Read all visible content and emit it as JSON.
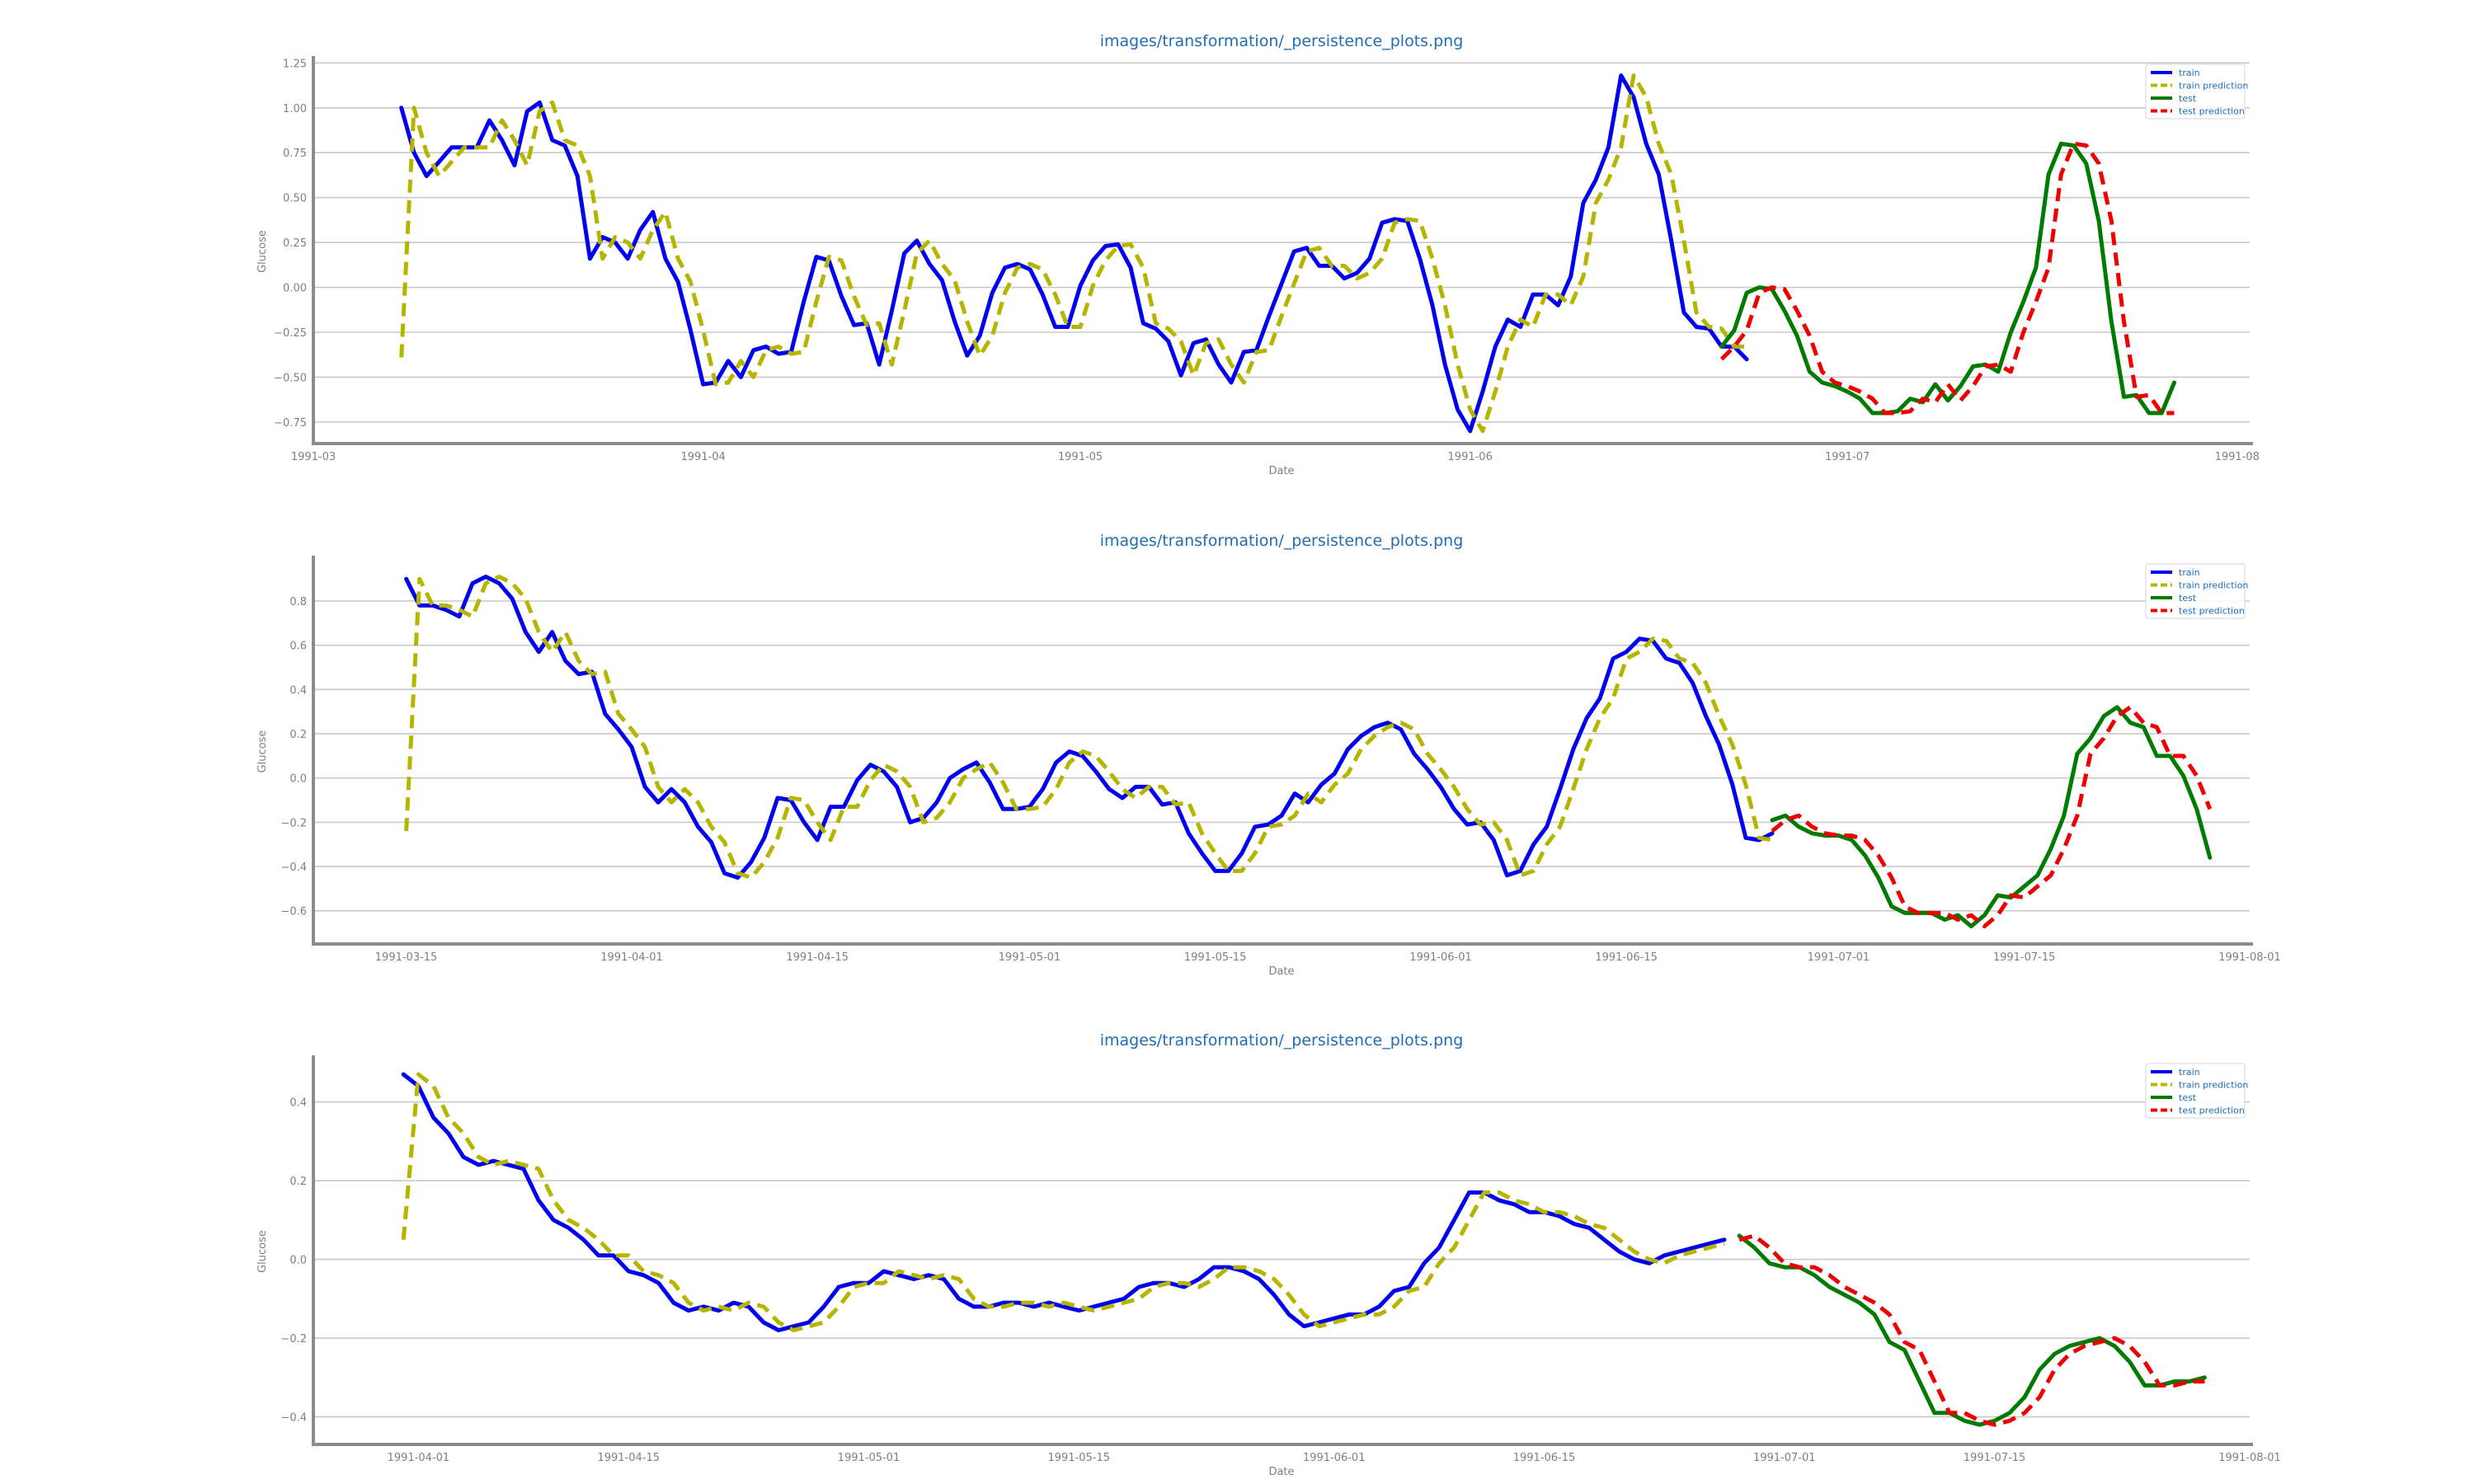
{
  "chart_data": [
    {
      "type": "line",
      "title": "images/transformation/_persistence_plots.png",
      "xlabel": "Date",
      "ylabel": "Glucose",
      "xlim": [
        "1991-03-01",
        "1991-08-02"
      ],
      "ylim": [
        -0.87,
        1.27
      ],
      "grid": true,
      "legend_position": "top-right",
      "x_ticks": [
        "1991-03",
        "1991-04",
        "1991-05",
        "1991-06",
        "1991-07",
        "1991-08"
      ],
      "y_ticks": [
        1.25,
        1.0,
        0.75,
        0.5,
        0.25,
        0.0,
        -0.25,
        -0.5,
        -0.75
      ],
      "y_tick_labels": [
        "1.25",
        "1.00",
        "0.75",
        "0.50",
        "0.25",
        "0.00",
        "−0.25",
        "−0.50",
        "−0.75"
      ],
      "series": [
        {
          "name": "train",
          "color": "#0000ee",
          "dash": "solid",
          "x_start": "1991-03-08",
          "step_days": 1,
          "values": [
            1.0,
            0.75,
            0.62,
            0.7,
            0.78,
            0.78,
            0.78,
            0.93,
            0.82,
            0.68,
            0.98,
            1.03,
            0.82,
            0.79,
            0.62,
            0.16,
            0.28,
            0.25,
            0.16,
            0.32,
            0.42,
            0.16,
            0.03,
            -0.24,
            -0.54,
            -0.53,
            -0.41,
            -0.5,
            -0.35,
            -0.33,
            -0.37,
            -0.36,
            -0.08,
            0.17,
            0.15,
            -0.05,
            -0.21,
            -0.2,
            -0.43,
            -0.13,
            0.19,
            0.26,
            0.13,
            0.04,
            -0.19,
            -0.38,
            -0.27,
            -0.03,
            0.11,
            0.13,
            0.1,
            -0.04,
            -0.22,
            -0.22,
            0.01,
            0.15,
            0.23,
            0.24,
            0.11,
            -0.2,
            -0.23,
            -0.3,
            -0.49,
            -0.31,
            -0.29,
            -0.43,
            -0.53,
            -0.36,
            -0.35,
            -0.16,
            0.02,
            0.2,
            0.22,
            0.12,
            0.12,
            0.05,
            0.08,
            0.16,
            0.36,
            0.38,
            0.37,
            0.16,
            -0.1,
            -0.43,
            -0.68,
            -0.8,
            -0.58,
            -0.33,
            -0.18,
            -0.22,
            -0.04,
            -0.04,
            -0.1,
            0.06,
            0.47,
            0.6,
            0.78,
            1.18,
            1.06,
            0.8,
            0.63,
            0.26,
            -0.14,
            -0.22,
            -0.23,
            -0.33,
            -0.33,
            -0.4
          ]
        },
        {
          "name": "train prediction",
          "color": "#b5b500",
          "dash": "dashed",
          "x_start": "1991-03-08",
          "step_days": 1,
          "values": [
            -0.39,
            1.0,
            0.75,
            0.62,
            0.7,
            0.78,
            0.78,
            0.78,
            0.93,
            0.82,
            0.68,
            0.98,
            1.03,
            0.82,
            0.79,
            0.62,
            0.16,
            0.28,
            0.25,
            0.16,
            0.32,
            0.42,
            0.16,
            0.03,
            -0.24,
            -0.54,
            -0.53,
            -0.41,
            -0.5,
            -0.35,
            -0.33,
            -0.37,
            -0.36,
            -0.08,
            0.17,
            0.15,
            -0.05,
            -0.21,
            -0.2,
            -0.43,
            -0.13,
            0.19,
            0.26,
            0.13,
            0.04,
            -0.19,
            -0.38,
            -0.27,
            -0.03,
            0.11,
            0.13,
            0.1,
            -0.04,
            -0.22,
            -0.22,
            0.01,
            0.15,
            0.23,
            0.24,
            0.11,
            -0.2,
            -0.23,
            -0.3,
            -0.49,
            -0.31,
            -0.29,
            -0.43,
            -0.53,
            -0.36,
            -0.35,
            -0.16,
            0.02,
            0.2,
            0.22,
            0.12,
            0.12,
            0.05,
            0.08,
            0.16,
            0.36,
            0.38,
            0.37,
            0.16,
            -0.1,
            -0.43,
            -0.68,
            -0.8,
            -0.58,
            -0.33,
            -0.18,
            -0.22,
            -0.04,
            -0.04,
            -0.1,
            0.06,
            0.47,
            0.6,
            0.78,
            1.18,
            1.06,
            0.8,
            0.63,
            0.26,
            -0.14,
            -0.22,
            -0.23,
            -0.33,
            -0.33
          ]
        },
        {
          "name": "test",
          "color": "#007a00",
          "dash": "solid",
          "x_start": "1991-06-21",
          "step_days": 1,
          "values": [
            -0.33,
            -0.24,
            -0.03,
            0.0,
            -0.01,
            -0.13,
            -0.27,
            -0.47,
            -0.53,
            -0.55,
            -0.58,
            -0.62,
            -0.7,
            -0.7,
            -0.69,
            -0.62,
            -0.64,
            -0.54,
            -0.63,
            -0.55,
            -0.44,
            -0.43,
            -0.47,
            -0.25,
            -0.08,
            0.11,
            0.63,
            0.8,
            0.79,
            0.69,
            0.37,
            -0.19,
            -0.61,
            -0.6,
            -0.7,
            -0.7,
            -0.53
          ]
        },
        {
          "name": "test prediction",
          "color": "#ee0000",
          "dash": "dashed",
          "x_start": "1991-06-21",
          "step_days": 1,
          "values": [
            -0.4,
            -0.33,
            -0.24,
            -0.03,
            0.0,
            -0.01,
            -0.13,
            -0.27,
            -0.47,
            -0.53,
            -0.55,
            -0.58,
            -0.62,
            -0.7,
            -0.7,
            -0.69,
            -0.62,
            -0.64,
            -0.54,
            -0.63,
            -0.55,
            -0.44,
            -0.43,
            -0.47,
            -0.25,
            -0.08,
            0.11,
            0.63,
            0.8,
            0.79,
            0.69,
            0.37,
            -0.19,
            -0.61,
            -0.6,
            -0.7,
            -0.7
          ]
        }
      ]
    },
    {
      "type": "line",
      "title": "images/transformation/_persistence_plots.png",
      "xlabel": "Date",
      "ylabel": "Glucose",
      "xlim": [
        "1991-03-08",
        "1991-08-01"
      ],
      "ylim": [
        -0.75,
        0.99
      ],
      "grid": true,
      "legend_position": "top-right",
      "x_ticks": [
        "1991-03-15",
        "1991-04-01",
        "1991-04-15",
        "1991-05-01",
        "1991-05-15",
        "1991-06-01",
        "1991-06-15",
        "1991-07-01",
        "1991-07-15",
        "1991-08-01"
      ],
      "y_ticks": [
        0.8,
        0.6,
        0.4,
        0.2,
        0.0,
        -0.2,
        -0.4,
        -0.6
      ],
      "y_tick_labels": [
        "0.8",
        "0.6",
        "0.4",
        "0.2",
        "0.0",
        "−0.2",
        "−0.4",
        "−0.6"
      ],
      "series": [
        {
          "name": "train",
          "color": "#0000ee",
          "dash": "solid",
          "x_start": "1991-03-15",
          "step_days": 1,
          "values": [
            0.9,
            0.78,
            0.78,
            0.76,
            0.73,
            0.88,
            0.91,
            0.88,
            0.81,
            0.66,
            0.57,
            0.66,
            0.53,
            0.47,
            0.48,
            0.29,
            0.22,
            0.14,
            -0.04,
            -0.11,
            -0.05,
            -0.11,
            -0.22,
            -0.29,
            -0.43,
            -0.45,
            -0.38,
            -0.27,
            -0.09,
            -0.1,
            -0.2,
            -0.28,
            -0.13,
            -0.13,
            -0.01,
            0.06,
            0.03,
            -0.04,
            -0.2,
            -0.18,
            -0.11,
            0.0,
            0.04,
            0.07,
            -0.02,
            -0.14,
            -0.14,
            -0.13,
            -0.05,
            0.07,
            0.12,
            0.1,
            0.03,
            -0.05,
            -0.09,
            -0.04,
            -0.04,
            -0.12,
            -0.11,
            -0.25,
            -0.34,
            -0.42,
            -0.42,
            -0.34,
            -0.22,
            -0.21,
            -0.17,
            -0.07,
            -0.11,
            -0.03,
            0.02,
            0.13,
            0.19,
            0.23,
            0.25,
            0.22,
            0.11,
            0.04,
            -0.04,
            -0.14,
            -0.21,
            -0.2,
            -0.28,
            -0.44,
            -0.42,
            -0.3,
            -0.22,
            -0.05,
            0.13,
            0.27,
            0.36,
            0.54,
            0.57,
            0.63,
            0.62,
            0.54,
            0.52,
            0.43,
            0.28,
            0.15,
            -0.03,
            -0.27,
            -0.28,
            -0.25
          ]
        },
        {
          "name": "train prediction",
          "color": "#b5b500",
          "dash": "dashed",
          "x_start": "1991-03-15",
          "step_days": 1,
          "values": [
            -0.24,
            0.9,
            0.78,
            0.78,
            0.76,
            0.73,
            0.88,
            0.91,
            0.88,
            0.81,
            0.66,
            0.57,
            0.66,
            0.53,
            0.47,
            0.48,
            0.29,
            0.22,
            0.14,
            -0.04,
            -0.11,
            -0.05,
            -0.11,
            -0.22,
            -0.29,
            -0.43,
            -0.45,
            -0.38,
            -0.27,
            -0.09,
            -0.1,
            -0.2,
            -0.28,
            -0.13,
            -0.13,
            -0.01,
            0.06,
            0.03,
            -0.04,
            -0.2,
            -0.18,
            -0.11,
            0.0,
            0.04,
            0.07,
            -0.02,
            -0.14,
            -0.14,
            -0.13,
            -0.05,
            0.07,
            0.12,
            0.1,
            0.03,
            -0.05,
            -0.09,
            -0.04,
            -0.04,
            -0.12,
            -0.11,
            -0.25,
            -0.34,
            -0.42,
            -0.42,
            -0.34,
            -0.22,
            -0.21,
            -0.17,
            -0.07,
            -0.11,
            -0.03,
            0.02,
            0.13,
            0.19,
            0.23,
            0.25,
            0.22,
            0.11,
            0.04,
            -0.04,
            -0.14,
            -0.21,
            -0.2,
            -0.28,
            -0.44,
            -0.42,
            -0.3,
            -0.22,
            -0.05,
            0.13,
            0.27,
            0.36,
            0.54,
            0.57,
            0.63,
            0.62,
            0.54,
            0.52,
            0.43,
            0.28,
            0.15,
            -0.03,
            -0.27,
            -0.28
          ]
        },
        {
          "name": "test",
          "color": "#007a00",
          "dash": "solid",
          "x_start": "1991-06-26",
          "step_days": 1,
          "values": [
            -0.19,
            -0.17,
            -0.22,
            -0.25,
            -0.26,
            -0.26,
            -0.28,
            -0.35,
            -0.45,
            -0.58,
            -0.61,
            -0.61,
            -0.61,
            -0.64,
            -0.62,
            -0.67,
            -0.62,
            -0.53,
            -0.54,
            -0.49,
            -0.44,
            -0.32,
            -0.17,
            0.11,
            0.18,
            0.28,
            0.32,
            0.25,
            0.23,
            0.1,
            0.1,
            0.01,
            -0.14,
            -0.36
          ]
        },
        {
          "name": "test prediction",
          "color": "#ee0000",
          "dash": "dashed",
          "x_start": "1991-06-26",
          "step_days": 1,
          "values": [
            -0.24,
            -0.19,
            -0.17,
            -0.22,
            -0.25,
            -0.26,
            -0.26,
            -0.28,
            -0.35,
            -0.45,
            -0.58,
            -0.61,
            -0.61,
            -0.61,
            -0.64,
            -0.62,
            -0.67,
            -0.62,
            -0.53,
            -0.54,
            -0.49,
            -0.44,
            -0.32,
            -0.17,
            0.11,
            0.18,
            0.28,
            0.32,
            0.25,
            0.23,
            0.1,
            0.1,
            0.01,
            -0.14
          ]
        }
      ]
    },
    {
      "type": "line",
      "title": "images/transformation/_persistence_plots.png",
      "xlabel": "Date",
      "ylabel": "Glucose",
      "xlim": [
        "1991-03-25",
        "1991-08-01"
      ],
      "ylim": [
        -0.47,
        0.51
      ],
      "grid": true,
      "legend_position": "top-right",
      "x_ticks": [
        "1991-04-01",
        "1991-04-15",
        "1991-05-01",
        "1991-05-15",
        "1991-06-01",
        "1991-06-15",
        "1991-07-01",
        "1991-07-15",
        "1991-08-01"
      ],
      "y_ticks": [
        0.4,
        0.2,
        0.0,
        -0.2,
        -0.4
      ],
      "y_tick_labels": [
        "0.4",
        "0.2",
        "0.0",
        "−0.2",
        "−0.4"
      ],
      "series": [
        {
          "name": "train",
          "color": "#0000ee",
          "dash": "solid",
          "x_start": "1991-03-31",
          "step_days": 1,
          "values": [
            0.47,
            0.44,
            0.36,
            0.32,
            0.26,
            0.24,
            0.25,
            0.24,
            0.23,
            0.15,
            0.1,
            0.08,
            0.05,
            0.01,
            0.01,
            -0.03,
            -0.04,
            -0.06,
            -0.11,
            -0.13,
            -0.12,
            -0.13,
            -0.11,
            -0.12,
            -0.16,
            -0.18,
            -0.17,
            -0.16,
            -0.12,
            -0.07,
            -0.06,
            -0.06,
            -0.03,
            -0.04,
            -0.05,
            -0.04,
            -0.05,
            -0.1,
            -0.12,
            -0.12,
            -0.11,
            -0.11,
            -0.12,
            -0.11,
            -0.12,
            -0.13,
            -0.12,
            -0.11,
            -0.1,
            -0.07,
            -0.06,
            -0.06,
            -0.07,
            -0.05,
            -0.02,
            -0.02,
            -0.03,
            -0.05,
            -0.09,
            -0.14,
            -0.17,
            -0.16,
            -0.15,
            -0.14,
            -0.14,
            -0.12,
            -0.08,
            -0.07,
            -0.01,
            0.03,
            0.1,
            0.17,
            0.17,
            0.15,
            0.14,
            0.12,
            0.12,
            0.11,
            0.09,
            0.08,
            0.05,
            0.02,
            0.0,
            -0.01,
            0.01,
            0.02,
            0.03,
            0.04,
            0.05
          ]
        },
        {
          "name": "train prediction",
          "color": "#b5b500",
          "dash": "dashed",
          "x_start": "1991-03-31",
          "step_days": 1,
          "values": [
            0.05,
            0.47,
            0.44,
            0.36,
            0.32,
            0.26,
            0.24,
            0.25,
            0.24,
            0.23,
            0.15,
            0.1,
            0.08,
            0.05,
            0.01,
            0.01,
            -0.03,
            -0.04,
            -0.06,
            -0.11,
            -0.13,
            -0.12,
            -0.13,
            -0.11,
            -0.12,
            -0.16,
            -0.18,
            -0.17,
            -0.16,
            -0.12,
            -0.07,
            -0.06,
            -0.06,
            -0.03,
            -0.04,
            -0.05,
            -0.04,
            -0.05,
            -0.1,
            -0.12,
            -0.12,
            -0.11,
            -0.11,
            -0.12,
            -0.11,
            -0.12,
            -0.13,
            -0.12,
            -0.11,
            -0.1,
            -0.07,
            -0.06,
            -0.06,
            -0.07,
            -0.05,
            -0.02,
            -0.02,
            -0.03,
            -0.05,
            -0.09,
            -0.14,
            -0.17,
            -0.16,
            -0.15,
            -0.14,
            -0.14,
            -0.12,
            -0.08,
            -0.07,
            -0.01,
            0.03,
            0.1,
            0.17,
            0.17,
            0.15,
            0.14,
            0.12,
            0.12,
            0.11,
            0.09,
            0.08,
            0.05,
            0.02,
            0.0,
            -0.01,
            0.01,
            0.02,
            0.03,
            0.04
          ]
        },
        {
          "name": "test",
          "color": "#007a00",
          "dash": "solid",
          "x_start": "1991-06-28",
          "step_days": 1,
          "values": [
            0.06,
            0.03,
            -0.01,
            -0.02,
            -0.02,
            -0.04,
            -0.07,
            -0.09,
            -0.11,
            -0.14,
            -0.21,
            -0.23,
            -0.31,
            -0.39,
            -0.39,
            -0.41,
            -0.42,
            -0.41,
            -0.39,
            -0.35,
            -0.28,
            -0.24,
            -0.22,
            -0.21,
            -0.2,
            -0.22,
            -0.26,
            -0.32,
            -0.32,
            -0.31,
            -0.31,
            -0.3
          ]
        },
        {
          "name": "test prediction",
          "color": "#ee0000",
          "dash": "dashed",
          "x_start": "1991-06-28",
          "step_days": 1,
          "values": [
            0.05,
            0.06,
            0.03,
            -0.01,
            -0.02,
            -0.02,
            -0.04,
            -0.07,
            -0.09,
            -0.11,
            -0.14,
            -0.21,
            -0.23,
            -0.31,
            -0.39,
            -0.39,
            -0.41,
            -0.42,
            -0.41,
            -0.39,
            -0.35,
            -0.28,
            -0.24,
            -0.22,
            -0.21,
            -0.2,
            -0.22,
            -0.26,
            -0.32,
            -0.32,
            -0.31,
            -0.31
          ]
        }
      ]
    }
  ]
}
